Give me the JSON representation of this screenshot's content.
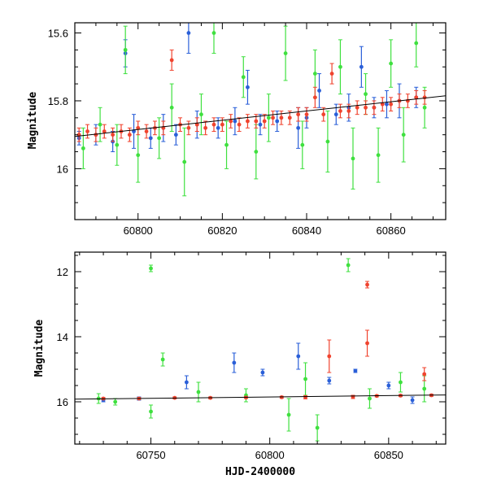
{
  "chart_data": [
    {
      "type": "scatter",
      "panel": "top",
      "ylabel": "Magnitude",
      "xlabel": "",
      "xlim": [
        60785,
        60873
      ],
      "ylim": [
        16.15,
        15.57
      ],
      "y_inverted": true,
      "xticks": [
        60800,
        60820,
        60840,
        60860
      ],
      "yticks": [
        15.6,
        15.8,
        16.0
      ],
      "ytick_labels": [
        "15.6",
        "15.8",
        "16"
      ],
      "legend": "none",
      "grid": false,
      "series": [
        {
          "color": "#2a5fd8",
          "points": [
            {
              "x": 60786,
              "y": 15.91,
              "e": 0.02
            },
            {
              "x": 60790,
              "y": 15.9,
              "e": 0.03
            },
            {
              "x": 60794,
              "y": 15.92,
              "e": 0.03
            },
            {
              "x": 60797,
              "y": 15.66,
              "e": 0.04
            },
            {
              "x": 60799,
              "y": 15.89,
              "e": 0.05
            },
            {
              "x": 60803,
              "y": 15.91,
              "e": 0.03
            },
            {
              "x": 60806,
              "y": 15.88,
              "e": 0.04
            },
            {
              "x": 60809,
              "y": 15.9,
              "e": 0.03
            },
            {
              "x": 60812,
              "y": 15.6,
              "e": 0.06
            },
            {
              "x": 60814,
              "y": 15.87,
              "e": 0.04
            },
            {
              "x": 60819,
              "y": 15.88,
              "e": 0.03
            },
            {
              "x": 60823,
              "y": 15.86,
              "e": 0.04
            },
            {
              "x": 60826,
              "y": 15.76,
              "e": 0.05
            },
            {
              "x": 60829,
              "y": 15.87,
              "e": 0.03
            },
            {
              "x": 60833,
              "y": 15.86,
              "e": 0.03
            },
            {
              "x": 60838,
              "y": 15.88,
              "e": 0.06
            },
            {
              "x": 60840,
              "y": 15.85,
              "e": 0.03
            },
            {
              "x": 60843,
              "y": 15.77,
              "e": 0.05
            },
            {
              "x": 60847,
              "y": 15.84,
              "e": 0.03
            },
            {
              "x": 60850,
              "y": 15.82,
              "e": 0.04
            },
            {
              "x": 60853,
              "y": 15.7,
              "e": 0.06
            },
            {
              "x": 60856,
              "y": 15.82,
              "e": 0.03
            },
            {
              "x": 60859,
              "y": 15.81,
              "e": 0.04
            },
            {
              "x": 60862,
              "y": 15.8,
              "e": 0.05
            },
            {
              "x": 60866,
              "y": 15.79,
              "e": 0.03
            }
          ]
        },
        {
          "color": "#3fe03f",
          "points": [
            {
              "x": 60787,
              "y": 15.94,
              "e": 0.06
            },
            {
              "x": 60791,
              "y": 15.87,
              "e": 0.05
            },
            {
              "x": 60795,
              "y": 15.93,
              "e": 0.06
            },
            {
              "x": 60797,
              "y": 15.65,
              "e": 0.07
            },
            {
              "x": 60800,
              "y": 15.96,
              "e": 0.08
            },
            {
              "x": 60805,
              "y": 15.91,
              "e": 0.06
            },
            {
              "x": 60808,
              "y": 15.82,
              "e": 0.07
            },
            {
              "x": 60811,
              "y": 15.98,
              "e": 0.1
            },
            {
              "x": 60815,
              "y": 15.84,
              "e": 0.06
            },
            {
              "x": 60818,
              "y": 15.6,
              "e": 0.06
            },
            {
              "x": 60821,
              "y": 15.93,
              "e": 0.07
            },
            {
              "x": 60825,
              "y": 15.73,
              "e": 0.06
            },
            {
              "x": 60828,
              "y": 15.95,
              "e": 0.08
            },
            {
              "x": 60831,
              "y": 15.85,
              "e": 0.07
            },
            {
              "x": 60835,
              "y": 15.66,
              "e": 0.08
            },
            {
              "x": 60839,
              "y": 15.93,
              "e": 0.07
            },
            {
              "x": 60842,
              "y": 15.72,
              "e": 0.07
            },
            {
              "x": 60845,
              "y": 15.92,
              "e": 0.09
            },
            {
              "x": 60848,
              "y": 15.7,
              "e": 0.08
            },
            {
              "x": 60851,
              "y": 15.97,
              "e": 0.09
            },
            {
              "x": 60854,
              "y": 15.78,
              "e": 0.06
            },
            {
              "x": 60857,
              "y": 15.96,
              "e": 0.08
            },
            {
              "x": 60860,
              "y": 15.69,
              "e": 0.07
            },
            {
              "x": 60863,
              "y": 15.9,
              "e": 0.08
            },
            {
              "x": 60866,
              "y": 15.63,
              "e": 0.07
            },
            {
              "x": 60868,
              "y": 15.82,
              "e": 0.06
            }
          ]
        },
        {
          "color": "#f0432e",
          "points": [
            {
              "x": 60786,
              "y": 15.9,
              "e": 0.02
            },
            {
              "x": 60788,
              "y": 15.89,
              "e": 0.02
            },
            {
              "x": 60790,
              "y": 15.9,
              "e": 0.02
            },
            {
              "x": 60792,
              "y": 15.89,
              "e": 0.02
            },
            {
              "x": 60794,
              "y": 15.9,
              "e": 0.02
            },
            {
              "x": 60796,
              "y": 15.89,
              "e": 0.02
            },
            {
              "x": 60798,
              "y": 15.9,
              "e": 0.02
            },
            {
              "x": 60800,
              "y": 15.88,
              "e": 0.02
            },
            {
              "x": 60802,
              "y": 15.89,
              "e": 0.02
            },
            {
              "x": 60804,
              "y": 15.88,
              "e": 0.02
            },
            {
              "x": 60806,
              "y": 15.88,
              "e": 0.02
            },
            {
              "x": 60808,
              "y": 15.68,
              "e": 0.03
            },
            {
              "x": 60810,
              "y": 15.87,
              "e": 0.02
            },
            {
              "x": 60812,
              "y": 15.88,
              "e": 0.02
            },
            {
              "x": 60814,
              "y": 15.87,
              "e": 0.02
            },
            {
              "x": 60816,
              "y": 15.88,
              "e": 0.02
            },
            {
              "x": 60818,
              "y": 15.87,
              "e": 0.02
            },
            {
              "x": 60820,
              "y": 15.87,
              "e": 0.02
            },
            {
              "x": 60822,
              "y": 15.86,
              "e": 0.02
            },
            {
              "x": 60824,
              "y": 15.87,
              "e": 0.02
            },
            {
              "x": 60826,
              "y": 15.86,
              "e": 0.02
            },
            {
              "x": 60828,
              "y": 15.86,
              "e": 0.02
            },
            {
              "x": 60830,
              "y": 15.86,
              "e": 0.02
            },
            {
              "x": 60832,
              "y": 15.85,
              "e": 0.02
            },
            {
              "x": 60834,
              "y": 15.85,
              "e": 0.02
            },
            {
              "x": 60836,
              "y": 15.85,
              "e": 0.02
            },
            {
              "x": 60838,
              "y": 15.84,
              "e": 0.02
            },
            {
              "x": 60840,
              "y": 15.84,
              "e": 0.02
            },
            {
              "x": 60842,
              "y": 15.79,
              "e": 0.03
            },
            {
              "x": 60844,
              "y": 15.84,
              "e": 0.02
            },
            {
              "x": 60846,
              "y": 15.72,
              "e": 0.03
            },
            {
              "x": 60848,
              "y": 15.83,
              "e": 0.02
            },
            {
              "x": 60850,
              "y": 15.83,
              "e": 0.02
            },
            {
              "x": 60852,
              "y": 15.82,
              "e": 0.02
            },
            {
              "x": 60854,
              "y": 15.82,
              "e": 0.02
            },
            {
              "x": 60856,
              "y": 15.82,
              "e": 0.02
            },
            {
              "x": 60858,
              "y": 15.81,
              "e": 0.02
            },
            {
              "x": 60860,
              "y": 15.81,
              "e": 0.02
            },
            {
              "x": 60862,
              "y": 15.8,
              "e": 0.02
            },
            {
              "x": 60864,
              "y": 15.8,
              "e": 0.02
            },
            {
              "x": 60866,
              "y": 15.79,
              "e": 0.02
            },
            {
              "x": 60868,
              "y": 15.79,
              "e": 0.02
            }
          ]
        }
      ],
      "trend_line": {
        "x": [
          60785,
          60873
        ],
        "y": [
          15.905,
          15.785
        ]
      }
    },
    {
      "type": "scatter",
      "panel": "bottom",
      "ylabel": "Magnitude",
      "xlabel": "HJD-2400000",
      "xlim": [
        60718,
        60874
      ],
      "ylim": [
        17.3,
        11.4
      ],
      "y_inverted": true,
      "xticks": [
        60750,
        60800,
        60850
      ],
      "yticks": [
        12,
        14,
        16
      ],
      "ytick_labels": [
        "12",
        "14",
        "16"
      ],
      "legend": "none",
      "grid": false,
      "series": [
        {
          "color": "#2a5fd8",
          "points": [
            {
              "x": 60730,
              "y": 15.95,
              "e": 0.05
            },
            {
              "x": 60745,
              "y": 15.9,
              "e": 0.05
            },
            {
              "x": 60765,
              "y": 15.4,
              "e": 0.2
            },
            {
              "x": 60785,
              "y": 14.8,
              "e": 0.3
            },
            {
              "x": 60797,
              "y": 15.1,
              "e": 0.1
            },
            {
              "x": 60812,
              "y": 14.6,
              "e": 0.4
            },
            {
              "x": 60825,
              "y": 15.35,
              "e": 0.1
            },
            {
              "x": 60836,
              "y": 15.05,
              "e": 0.05
            },
            {
              "x": 60850,
              "y": 15.5,
              "e": 0.1
            },
            {
              "x": 60860,
              "y": 15.95,
              "e": 0.1
            }
          ]
        },
        {
          "color": "#3fe03f",
          "points": [
            {
              "x": 60728,
              "y": 15.9,
              "e": 0.15
            },
            {
              "x": 60735,
              "y": 16.0,
              "e": 0.1
            },
            {
              "x": 60750,
              "y": 11.9,
              "e": 0.1
            },
            {
              "x": 60750,
              "y": 16.3,
              "e": 0.2
            },
            {
              "x": 60755,
              "y": 14.7,
              "e": 0.2
            },
            {
              "x": 60770,
              "y": 15.7,
              "e": 0.3
            },
            {
              "x": 60790,
              "y": 15.8,
              "e": 0.2
            },
            {
              "x": 60808,
              "y": 16.4,
              "e": 0.5
            },
            {
              "x": 60815,
              "y": 15.3,
              "e": 0.5
            },
            {
              "x": 60820,
              "y": 16.8,
              "e": 0.4
            },
            {
              "x": 60833,
              "y": 11.8,
              "e": 0.2
            },
            {
              "x": 60842,
              "y": 15.9,
              "e": 0.3
            },
            {
              "x": 60855,
              "y": 15.4,
              "e": 0.3
            },
            {
              "x": 60865,
              "y": 15.6,
              "e": 0.4
            }
          ]
        },
        {
          "color": "#f0432e",
          "points": [
            {
              "x": 60730,
              "y": 15.9,
              "e": 0.03
            },
            {
              "x": 60745,
              "y": 15.9,
              "e": 0.03
            },
            {
              "x": 60760,
              "y": 15.88,
              "e": 0.03
            },
            {
              "x": 60775,
              "y": 15.88,
              "e": 0.03
            },
            {
              "x": 60790,
              "y": 15.87,
              "e": 0.03
            },
            {
              "x": 60805,
              "y": 15.86,
              "e": 0.03
            },
            {
              "x": 60815,
              "y": 15.86,
              "e": 0.05
            },
            {
              "x": 60825,
              "y": 14.6,
              "e": 0.5
            },
            {
              "x": 60835,
              "y": 15.85,
              "e": 0.05
            },
            {
              "x": 60841,
              "y": 12.4,
              "e": 0.1
            },
            {
              "x": 60841,
              "y": 14.2,
              "e": 0.4
            },
            {
              "x": 60845,
              "y": 15.82,
              "e": 0.03
            },
            {
              "x": 60855,
              "y": 15.81,
              "e": 0.03
            },
            {
              "x": 60865,
              "y": 15.15,
              "e": 0.2
            },
            {
              "x": 60868,
              "y": 15.8,
              "e": 0.03
            }
          ]
        }
      ],
      "trend_line": {
        "x": [
          60718,
          60874
        ],
        "y": [
          15.92,
          15.79
        ]
      }
    }
  ]
}
